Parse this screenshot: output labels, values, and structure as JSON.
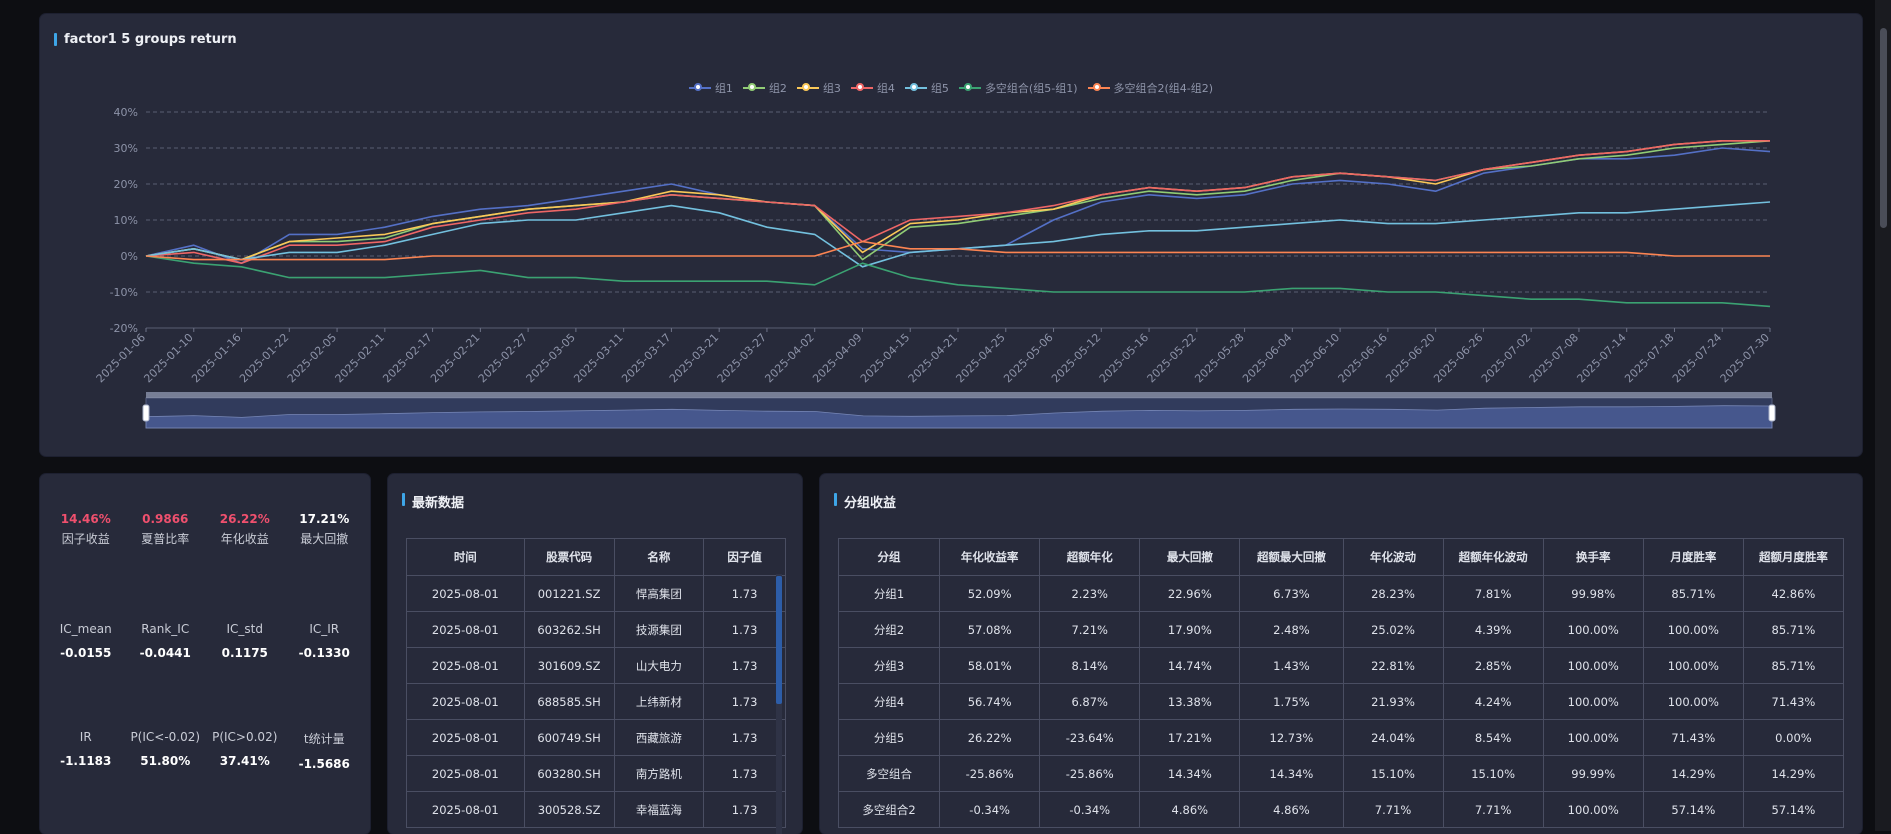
{
  "chart_panel": {
    "title": "factor1 5 groups return"
  },
  "chart_data": {
    "type": "line",
    "title": "factor1 5 groups return",
    "ylim": [
      -20,
      40
    ],
    "yticks": [
      "40%",
      "30%",
      "20%",
      "10%",
      "0%",
      "-10%",
      "-20%"
    ],
    "grid": true,
    "legend_position": "top-center",
    "x_tick_labels": [
      "2025-01-06",
      "2025-01-10",
      "2025-01-16",
      "2025-01-22",
      "2025-02-05",
      "2025-02-11",
      "2025-02-17",
      "2025-02-21",
      "2025-02-27",
      "2025-03-05",
      "2025-03-11",
      "2025-03-17",
      "2025-03-21",
      "2025-03-27",
      "2025-04-02",
      "2025-04-09",
      "2025-04-15",
      "2025-04-21",
      "2025-04-25",
      "2025-05-06",
      "2025-05-12",
      "2025-05-16",
      "2025-05-22",
      "2025-05-28",
      "2025-06-04",
      "2025-06-10",
      "2025-06-16",
      "2025-06-20",
      "2025-06-26",
      "2025-07-02",
      "2025-07-08",
      "2025-07-14",
      "2025-07-18",
      "2025-07-24",
      "2025-07-30"
    ],
    "series": [
      {
        "name": "组1",
        "color": "#5470c6",
        "values": [
          0,
          3,
          -2,
          6,
          6,
          8,
          11,
          13,
          14,
          16,
          18,
          20,
          17,
          15,
          14,
          2,
          1,
          2,
          3,
          10,
          15,
          17,
          16,
          17,
          20,
          21,
          20,
          18,
          23,
          25,
          27,
          27,
          28,
          30,
          29
        ]
      },
      {
        "name": "组2",
        "color": "#91cc75",
        "values": [
          0,
          2,
          -1,
          4,
          4,
          5,
          9,
          11,
          13,
          14,
          15,
          17,
          16,
          15,
          14,
          -1,
          8,
          9,
          11,
          13,
          16,
          18,
          17,
          18,
          21,
          23,
          22,
          21,
          24,
          25,
          27,
          28,
          30,
          31,
          32
        ]
      },
      {
        "name": "组3",
        "color": "#fac858",
        "values": [
          0,
          2,
          -1,
          4,
          5,
          6,
          9,
          11,
          13,
          14,
          15,
          18,
          17,
          15,
          14,
          1,
          9,
          10,
          12,
          13,
          17,
          19,
          18,
          19,
          22,
          23,
          22,
          20,
          24,
          26,
          28,
          29,
          31,
          32,
          32
        ]
      },
      {
        "name": "组4",
        "color": "#ee6666",
        "values": [
          0,
          1,
          -2,
          3,
          3,
          4,
          8,
          10,
          12,
          13,
          15,
          17,
          16,
          15,
          14,
          4,
          10,
          11,
          12,
          14,
          17,
          19,
          18,
          19,
          22,
          23,
          22,
          21,
          24,
          26,
          28,
          29,
          31,
          32,
          32
        ]
      },
      {
        "name": "组5",
        "color": "#73c0de",
        "values": [
          0,
          2,
          -1,
          1,
          1,
          3,
          6,
          9,
          10,
          10,
          12,
          14,
          12,
          8,
          6,
          -3,
          1,
          2,
          3,
          4,
          6,
          7,
          7,
          8,
          9,
          10,
          9,
          9,
          10,
          11,
          12,
          12,
          13,
          14,
          15
        ]
      },
      {
        "name": "多空组合(组5-组1)",
        "color": "#3ba272",
        "values": [
          0,
          -2,
          -3,
          -6,
          -6,
          -6,
          -5,
          -4,
          -6,
          -6,
          -7,
          -7,
          -7,
          -7,
          -8,
          -2,
          -6,
          -8,
          -9,
          -10,
          -10,
          -10,
          -10,
          -10,
          -9,
          -9,
          -10,
          -10,
          -11,
          -12,
          -12,
          -13,
          -13,
          -13,
          -14
        ]
      },
      {
        "name": "多空组合2(组4-组2)",
        "color": "#fc8452",
        "values": [
          0,
          -1,
          -1,
          -1,
          -1,
          -1,
          0,
          0,
          0,
          0,
          0,
          0,
          0,
          0,
          0,
          4,
          2,
          2,
          1,
          1,
          1,
          1,
          1,
          1,
          1,
          1,
          1,
          1,
          1,
          1,
          1,
          1,
          0,
          0,
          0
        ]
      }
    ]
  },
  "stats": {
    "row1": [
      {
        "value": "14.46%",
        "label": "因子收益",
        "color": "red"
      },
      {
        "value": "0.9866",
        "label": "夏普比率",
        "color": "red"
      },
      {
        "value": "26.22%",
        "label": "年化收益",
        "color": "red"
      },
      {
        "value": "17.21%",
        "label": "最大回撤",
        "color": "white"
      }
    ],
    "row2": [
      {
        "label": "IC_mean",
        "value": "-0.0155"
      },
      {
        "label": "Rank_IC",
        "value": "-0.0441"
      },
      {
        "label": "IC_std",
        "value": "0.1175"
      },
      {
        "label": "IC_IR",
        "value": "-0.1330"
      }
    ],
    "row3": [
      {
        "label": "IR",
        "value": "-1.1183"
      },
      {
        "label": "P(IC<-0.02)",
        "value": "51.80%"
      },
      {
        "label": "P(IC>0.02)",
        "value": "37.41%"
      },
      {
        "label": "t统计量",
        "value": "-1.5686"
      }
    ]
  },
  "latest": {
    "title": "最新数据",
    "headers": [
      "时间",
      "股票代码",
      "名称",
      "因子值"
    ],
    "rows": [
      [
        "2025-08-01",
        "001221.SZ",
        "悍高集团",
        "1.73"
      ],
      [
        "2025-08-01",
        "603262.SH",
        "技源集团",
        "1.73"
      ],
      [
        "2025-08-01",
        "301609.SZ",
        "山大电力",
        "1.73"
      ],
      [
        "2025-08-01",
        "688585.SH",
        "上纬新材",
        "1.73"
      ],
      [
        "2025-08-01",
        "600749.SH",
        "西藏旅游",
        "1.73"
      ],
      [
        "2025-08-01",
        "603280.SH",
        "南方路机",
        "1.73"
      ],
      [
        "2025-08-01",
        "300528.SZ",
        "幸福蓝海",
        "1.73"
      ]
    ]
  },
  "groups": {
    "title": "分组收益",
    "headers": [
      "分组",
      "年化收益率",
      "超额年化",
      "最大回撤",
      "超额最大回撤",
      "年化波动",
      "超额年化波动",
      "换手率",
      "月度胜率",
      "超额月度胜率"
    ],
    "rows": [
      [
        "分组1",
        "52.09%",
        "2.23%",
        "22.96%",
        "6.73%",
        "28.23%",
        "7.81%",
        "99.98%",
        "85.71%",
        "42.86%"
      ],
      [
        "分组2",
        "57.08%",
        "7.21%",
        "17.90%",
        "2.48%",
        "25.02%",
        "4.39%",
        "100.00%",
        "100.00%",
        "85.71%"
      ],
      [
        "分组3",
        "58.01%",
        "8.14%",
        "14.74%",
        "1.43%",
        "22.81%",
        "2.85%",
        "100.00%",
        "100.00%",
        "85.71%"
      ],
      [
        "分组4",
        "56.74%",
        "6.87%",
        "13.38%",
        "1.75%",
        "21.93%",
        "4.24%",
        "100.00%",
        "100.00%",
        "71.43%"
      ],
      [
        "分组5",
        "26.22%",
        "-23.64%",
        "17.21%",
        "12.73%",
        "24.04%",
        "8.54%",
        "100.00%",
        "71.43%",
        "0.00%"
      ],
      [
        "多空组合",
        "-25.86%",
        "-25.86%",
        "14.34%",
        "14.34%",
        "15.10%",
        "15.10%",
        "99.99%",
        "14.29%",
        "14.29%"
      ],
      [
        "多空组合2",
        "-0.34%",
        "-0.34%",
        "4.86%",
        "4.86%",
        "7.71%",
        "7.71%",
        "100.00%",
        "57.14%",
        "57.14%"
      ]
    ]
  }
}
